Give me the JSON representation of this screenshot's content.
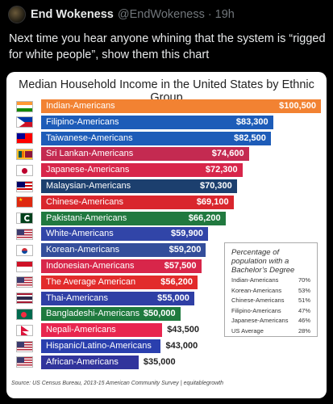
{
  "tweet": {
    "author_name": "End Wokeness",
    "author_handle": "@EndWokeness",
    "separator": "·",
    "time": "19h",
    "text": "Next time you hear anyone whining that the system is “rigged for white people”, show them this chart"
  },
  "chart_data": {
    "type": "bar",
    "title": "Median Household Income in the United States  by Ethnic Group",
    "categories": [
      "Indian-Americans",
      "Filipino-Americans",
      "Taiwanese-Americans",
      "Sri Lankan-Americans",
      "Japanese-Americans",
      "Malaysian-Americans",
      "Chinese-Americans",
      "Pakistani-Americans",
      "White-Americans",
      "Korean-Americans",
      "Indonesian-Americans",
      "The Average American",
      "Thai-Americans",
      "Bangladeshi-Americans",
      "Nepali-Americans",
      "Hispanic/Latino-Americans",
      "African-Americans"
    ],
    "values": [
      100500,
      83300,
      82500,
      74600,
      72300,
      70300,
      69100,
      66200,
      59900,
      59200,
      57500,
      56200,
      55000,
      50000,
      43500,
      43000,
      35000
    ],
    "value_labels": [
      "$100,500",
      "$83,300",
      "$82,500",
      "$74,600",
      "$72,300",
      "$70,300",
      "$69,100",
      "$66,200",
      "$59,900",
      "$59,200",
      "$57,500",
      "$56,200",
      "$55,000",
      "$50,000",
      "$43,500",
      "$43,000",
      "$35,000"
    ],
    "colors": [
      "#f28232",
      "#1d5cb8",
      "#1d5cb8",
      "#c42a51",
      "#d8264a",
      "#1c3f6e",
      "#d9262d",
      "#21793f",
      "#3145a8",
      "#344e9b",
      "#d8264a",
      "#e22b2b",
      "#2f3fa5",
      "#1f7a3e",
      "#e8264f",
      "#2a3fae",
      "#31349c"
    ],
    "flags": [
      "india",
      "philippines",
      "taiwan",
      "sri-lanka",
      "japan",
      "malaysia",
      "china",
      "pakistan",
      "usa",
      "south-korea",
      "indonesia",
      "usa",
      "thailand",
      "bangladesh",
      "nepal",
      "usa",
      "usa"
    ],
    "inset": {
      "title": "Percentage of population with a Bachelor’s Degree",
      "rows": [
        {
          "group": "Indian-Americans",
          "pct": "70%"
        },
        {
          "group": "Korean-Americans",
          "pct": "53%"
        },
        {
          "group": "Chinese-Americans",
          "pct": "51%"
        },
        {
          "group": "Filipino-Americans",
          "pct": "47%"
        },
        {
          "group": "Japanese-Americans",
          "pct": "46%"
        },
        {
          "group": "US Average",
          "pct": "28%"
        }
      ]
    },
    "source": "Source: US Census Bureau, 2013-15 American Community Survey | equitablegrowth"
  }
}
